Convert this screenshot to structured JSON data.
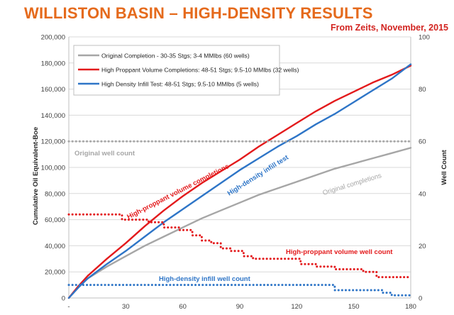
{
  "page": {
    "title": "WILLISTON BASIN – HIGH-DENSITY RESULTS",
    "source": "From Zeits, November, 2015"
  },
  "chart_data": {
    "type": "line",
    "ylabel": "Cumulative Oil Equivalent-Boe",
    "y2label": "Well Count",
    "xlim": [
      0,
      180
    ],
    "ylim": [
      0,
      200000
    ],
    "y2lim": [
      0,
      100
    ],
    "x_ticks": [
      "-",
      "30",
      "60",
      "90",
      "120",
      "150",
      "180"
    ],
    "y_ticks": [
      "0",
      "20,000",
      "40,000",
      "60,000",
      "80,000",
      "100,000",
      "120,000",
      "140,000",
      "160,000",
      "180,000",
      "200,000"
    ],
    "y2_ticks": [
      "0",
      "20",
      "40",
      "60",
      "80",
      "100"
    ],
    "grid": "horizontal",
    "legend": "top-left",
    "series": [
      {
        "name": "Original Completion - 30-35 Stgs; 3-4 MMlbs (60 wells)",
        "axis": "left",
        "color": "#a6a6a6",
        "style": "solid",
        "x": [
          0,
          5,
          10,
          20,
          30,
          40,
          50,
          60,
          70,
          80,
          90,
          100,
          110,
          120,
          130,
          140,
          150,
          160,
          170,
          180
        ],
        "y": [
          0,
          8000,
          15000,
          24000,
          32000,
          40000,
          47000,
          54000,
          61000,
          67000,
          73000,
          79000,
          84000,
          89000,
          94000,
          99000,
          103000,
          107000,
          111000,
          115000
        ]
      },
      {
        "name": "High Proppant Volume Completions: 48-51 Stgs; 9.5-10 MMlbs (32 wells)",
        "axis": "left",
        "color": "#e31a1c",
        "style": "solid",
        "x": [
          0,
          5,
          10,
          20,
          30,
          40,
          50,
          60,
          70,
          80,
          90,
          100,
          110,
          120,
          130,
          140,
          150,
          160,
          170,
          180
        ],
        "y": [
          0,
          9000,
          17000,
          30000,
          42000,
          55000,
          67000,
          78000,
          88000,
          97000,
          106000,
          116000,
          125000,
          134000,
          143000,
          151000,
          158000,
          165000,
          171000,
          178000
        ]
      },
      {
        "name": "High Density Infill Test: 48-51 Stgs; 9.5-10 MMlbs (5 wells)",
        "axis": "left",
        "color": "#2e75c7",
        "style": "solid",
        "x": [
          0,
          5,
          10,
          20,
          30,
          40,
          50,
          60,
          70,
          80,
          90,
          100,
          110,
          120,
          130,
          140,
          150,
          160,
          170,
          180
        ],
        "y": [
          0,
          8000,
          15000,
          26000,
          36000,
          47000,
          58000,
          68000,
          78000,
          88000,
          98000,
          107000,
          116000,
          124000,
          133000,
          141000,
          150000,
          159000,
          168000,
          179000
        ]
      },
      {
        "name": "Original well count",
        "axis": "right",
        "color": "#a6a6a6",
        "style": "dotted",
        "x": [
          0,
          180
        ],
        "y": [
          60,
          60
        ]
      },
      {
        "name": "High-proppant volume well count",
        "axis": "right",
        "color": "#e31a1c",
        "style": "dotted",
        "step": true,
        "x": [
          0,
          20,
          28,
          42,
          50,
          58,
          65,
          70,
          75,
          80,
          85,
          92,
          97,
          118,
          122,
          130,
          140,
          155,
          162,
          180
        ],
        "y": [
          32,
          32,
          30,
          29,
          27,
          26,
          24,
          22,
          21,
          19,
          18,
          16,
          15,
          15,
          13,
          12,
          11,
          10,
          8,
          8
        ]
      },
      {
        "name": "High-density infill well count",
        "axis": "right",
        "color": "#2e75c7",
        "style": "dotted",
        "step": true,
        "x": [
          0,
          135,
          140,
          160,
          165,
          170,
          180
        ],
        "y": [
          5,
          5,
          3,
          3,
          2,
          1,
          1
        ]
      }
    ],
    "annotations": [
      {
        "text": "Original well count",
        "color": "#a6a6a6"
      },
      {
        "text": "High-proppant volume completions",
        "color": "#e31a1c"
      },
      {
        "text": "High-density infill test",
        "color": "#2e75c7"
      },
      {
        "text": "Original completions",
        "color": "#a6a6a6"
      },
      {
        "text": "High-proppant volume well count",
        "color": "#e31a1c"
      },
      {
        "text": "High-density infill well count",
        "color": "#2e75c7"
      }
    ]
  }
}
